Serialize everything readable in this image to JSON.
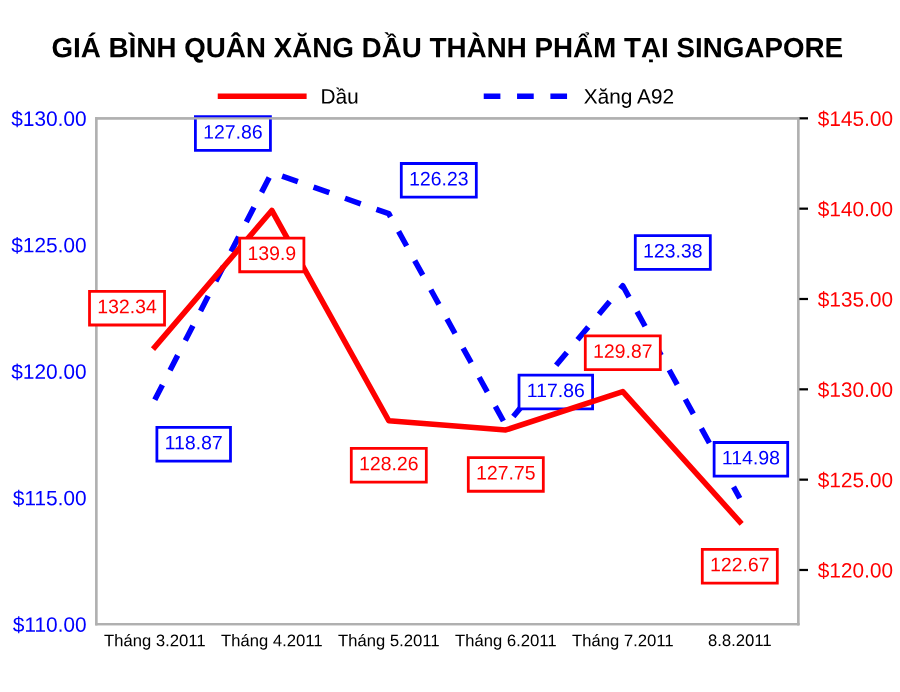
{
  "chart_data": {
    "type": "line",
    "title": "GIÁ BÌNH QUÂN XĂNG DẦU THÀNH PHẨM TẠI SINGAPORE",
    "categories": [
      "Tháng 3.2011",
      "Tháng 4.2011",
      "Tháng 5.2011",
      "Tháng 6.2011",
      "Tháng 7.2011",
      "8.8.2011"
    ],
    "series": [
      {
        "name": "Dầu",
        "color": "#ff0000",
        "axis": "y2",
        "line_style": "solid",
        "values": [
          132.34,
          139.9,
          128.26,
          127.75,
          129.87,
          122.67
        ]
      },
      {
        "name": "Xăng A92",
        "color": "#0000ff",
        "line_style": "dashed",
        "values": [
          118.87,
          127.86,
          126.23,
          117.86,
          123.38,
          114.98
        ]
      }
    ],
    "ylim": [
      110,
      130
    ],
    "yticks": [
      {
        "value": 110,
        "label": "$110.00"
      },
      {
        "value": 115,
        "label": "$115.00"
      },
      {
        "value": 120,
        "label": "$120.00"
      },
      {
        "value": 125,
        "label": "$125.00"
      },
      {
        "value": 130,
        "label": "$130.00"
      }
    ],
    "y2lim": [
      117,
      145
    ],
    "y2ticks": [
      {
        "value": 120,
        "label": "$120.00"
      },
      {
        "value": 125,
        "label": "$125.00"
      },
      {
        "value": 130,
        "label": "$130.00"
      },
      {
        "value": 135,
        "label": "$135.00"
      },
      {
        "value": 140,
        "label": "$140.00"
      },
      {
        "value": 145,
        "label": "$145.00"
      }
    ],
    "data_labels": true,
    "legend": "top",
    "grid": false
  }
}
